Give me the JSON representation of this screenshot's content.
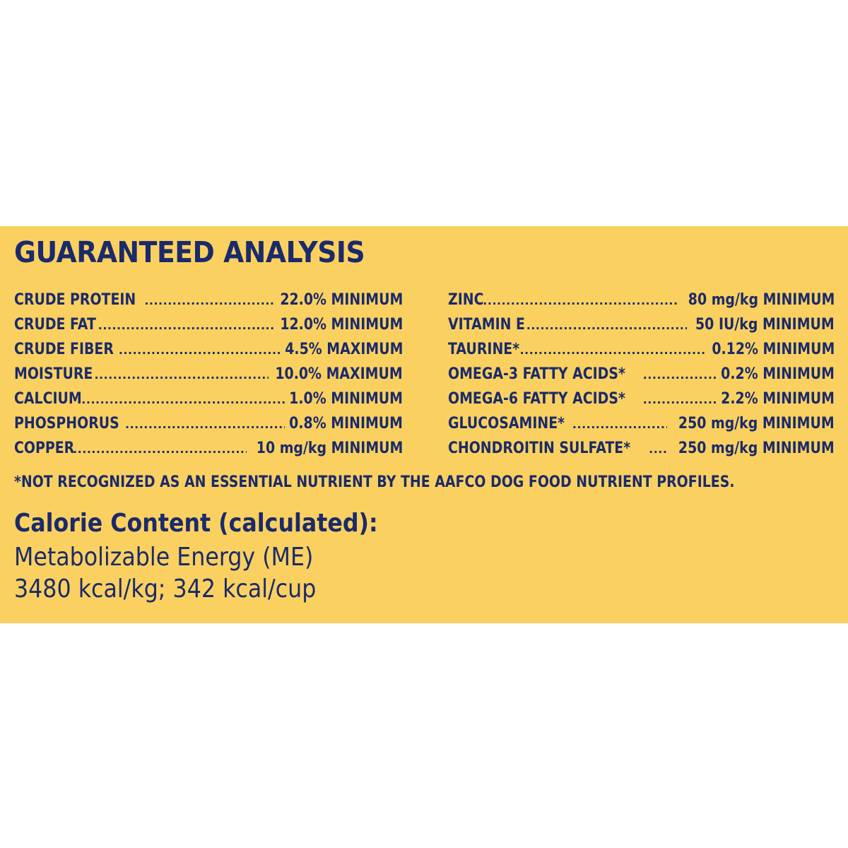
{
  "title": "GUARANTEED ANALYSIS",
  "left_column": [
    {
      "name": "CRUDE PROTEIN",
      "value": "22.0% MINIMUM"
    },
    {
      "name": "CRUDE FAT",
      "value": "12.0% MINIMUM"
    },
    {
      "name": "CRUDE FIBER",
      "value": "4.5% MAXIMUM"
    },
    {
      "name": "MOISTURE",
      "value": "10.0% MAXIMUM"
    },
    {
      "name": "CALCIUM",
      "value": "1.0% MINIMUM"
    },
    {
      "name": "PHOSPHORUS",
      "value": "0.8% MINIMUM"
    },
    {
      "name": "COPPER",
      "value": "10 mg/kg MINIMUM"
    }
  ],
  "right_column": [
    {
      "name": "ZINC",
      "value": "80 mg/kg MINIMUM"
    },
    {
      "name": "VITAMIN E",
      "value": "50 IU/kg MINIMUM"
    },
    {
      "name": "TAURINE*",
      "value": "0.12% MINIMUM"
    },
    {
      "name": "OMEGA-3 FATTY ACIDS*",
      "value": "0.2% MINIMUM"
    },
    {
      "name": "OMEGA-6 FATTY ACIDS*",
      "value": "2.2% MINIMUM"
    },
    {
      "name": "GLUCOSAMINE*",
      "value": "250 mg/kg MINIMUM"
    },
    {
      "name": "CHONDROITIN SULFATE*",
      "value": "250 mg/kg MINIMUM"
    }
  ],
  "footnote": "*NOT RECOGNIZED AS AN ESSENTIAL NUTRIENT BY THE AAFCO DOG FOOD NUTRIENT PROFILES.",
  "calorie": {
    "heading": "Calorie Content (calculated):",
    "line1": "Metabolizable Energy (ME)",
    "line2": "3480 kcal/kg; 342 kcal/cup"
  },
  "colors": {
    "panel_background": "#fad160",
    "text": "#1b2a6b",
    "page_background": "#ffffff"
  }
}
